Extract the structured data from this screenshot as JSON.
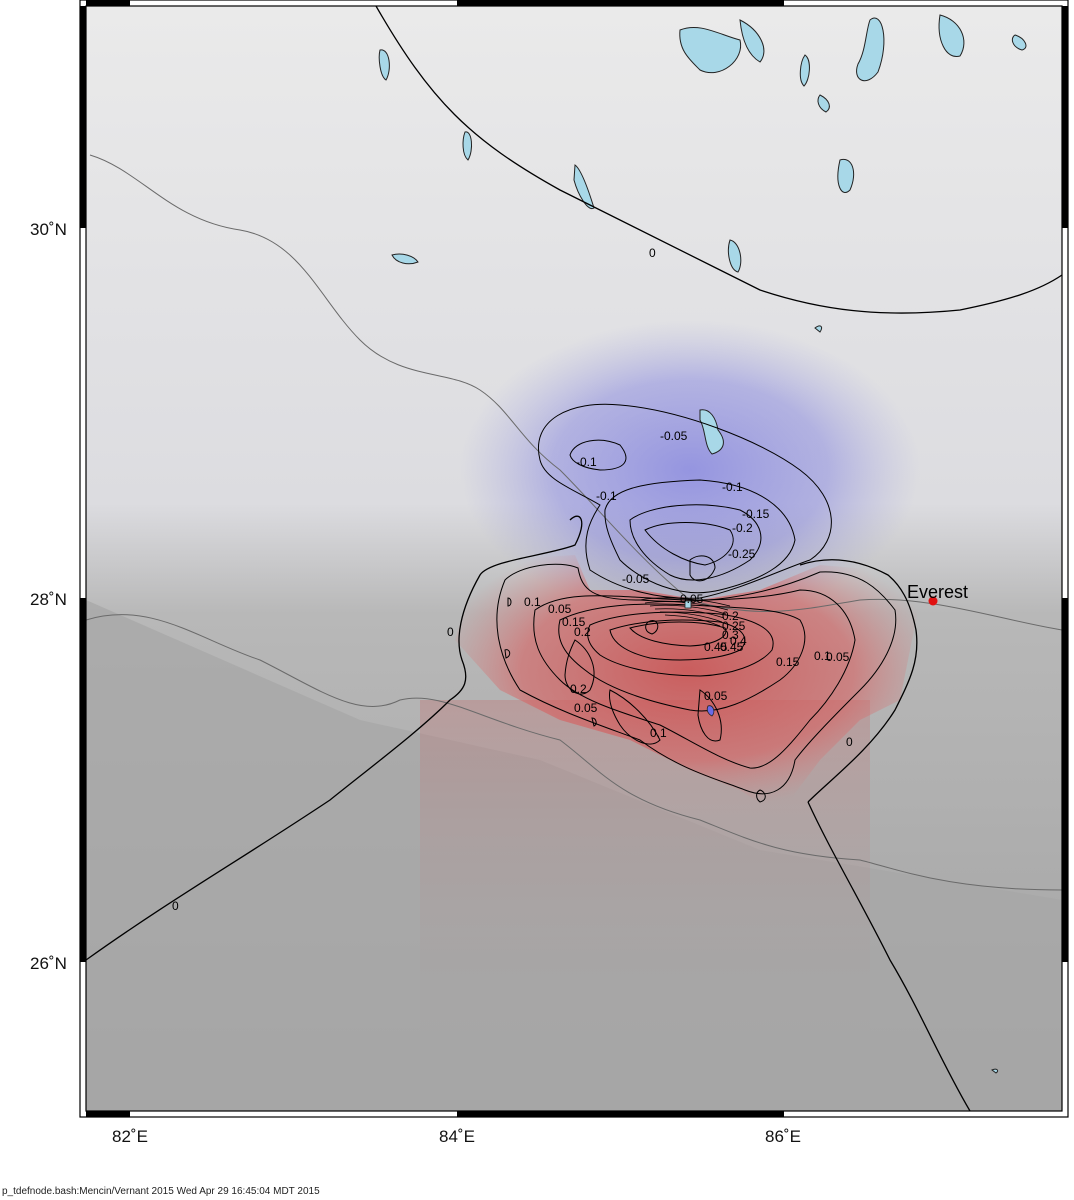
{
  "map": {
    "lon_labels": [
      "82˚E",
      "84˚E",
      "86˚E"
    ],
    "lat_labels": [
      "30˚N",
      "28˚N",
      "26˚N"
    ],
    "place": {
      "name": "Everest",
      "marker_color": "#e01010"
    },
    "contour_labels": [
      "0",
      "0",
      "0",
      "0",
      "-0.05",
      "-0.1",
      "-0.1",
      "-0.1",
      "-0.15",
      "-0.2",
      "-0.25",
      "-0.05",
      "0.1",
      "0.05",
      "0.15",
      "0.2",
      "0.45",
      "0.45",
      "0.15",
      "0.1",
      "0.05",
      "0.2",
      "0.05",
      "0.1",
      "0.05",
      "0.05",
      "0.2",
      "0.25",
      "0.3",
      "0.4"
    ],
    "colors": {
      "uplift": "#d46060",
      "subsidence": "#6a6ae6",
      "lakes": "#a8d8e8",
      "land_north": "#e6e6e6",
      "land_south": "#a6a6a6"
    }
  },
  "footer": {
    "credit": "p_tdefnode.bash:Mencin/Vernant 2015 Wed Apr 29 16:45:04 MDT 2015"
  }
}
